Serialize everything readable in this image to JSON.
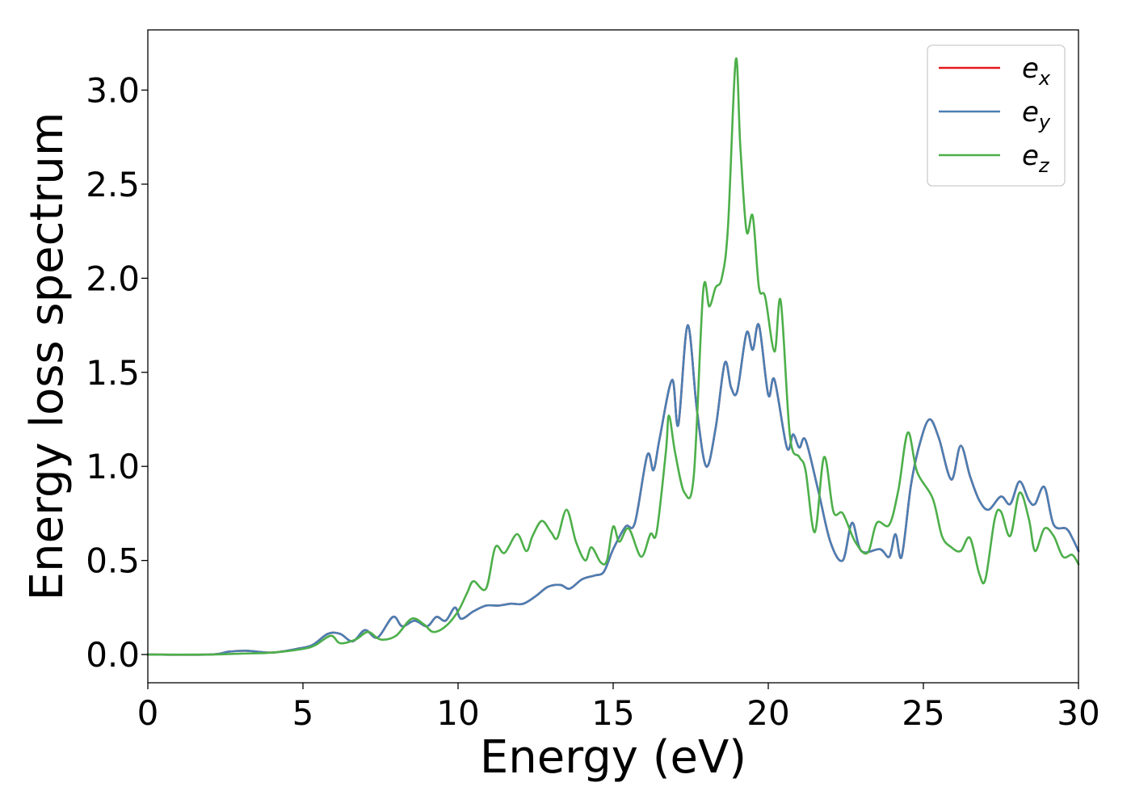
{
  "chart_data": {
    "type": "line",
    "xlabel": "Energy (eV)",
    "ylabel": "Energy loss spectrum",
    "xlim": [
      0,
      30
    ],
    "ylim": [
      -0.15,
      3.32
    ],
    "xticks": [
      0,
      5,
      10,
      15,
      20,
      25,
      30
    ],
    "xtick_labels": [
      "0",
      "5",
      "10",
      "15",
      "20",
      "25",
      "30"
    ],
    "yticks": [
      0.0,
      0.5,
      1.0,
      1.5,
      2.0,
      2.5,
      3.0
    ],
    "ytick_labels": [
      "0.0",
      "0.5",
      "1.0",
      "1.5",
      "2.0",
      "2.5",
      "3.0"
    ],
    "grid": false,
    "legend_position": "top-right",
    "series": [
      {
        "name": "e_x",
        "legend_base": "e",
        "legend_sub": "x",
        "color": "#e41a1c",
        "points": [
          [
            0,
            0.0
          ],
          [
            2,
            0.0
          ],
          [
            2.6,
            0.015
          ],
          [
            3.2,
            0.02
          ],
          [
            4,
            0.01
          ],
          [
            4.8,
            0.03
          ],
          [
            5.3,
            0.05
          ],
          [
            5.8,
            0.11
          ],
          [
            6.2,
            0.11
          ],
          [
            6.6,
            0.07
          ],
          [
            7.0,
            0.13
          ],
          [
            7.4,
            0.09
          ],
          [
            7.9,
            0.2
          ],
          [
            8.2,
            0.15
          ],
          [
            8.6,
            0.18
          ],
          [
            9.0,
            0.15
          ],
          [
            9.3,
            0.2
          ],
          [
            9.6,
            0.18
          ],
          [
            9.9,
            0.25
          ],
          [
            10.1,
            0.19
          ],
          [
            10.5,
            0.23
          ],
          [
            10.9,
            0.26
          ],
          [
            11.3,
            0.26
          ],
          [
            11.7,
            0.27
          ],
          [
            12.1,
            0.27
          ],
          [
            12.5,
            0.31
          ],
          [
            12.9,
            0.36
          ],
          [
            13.3,
            0.37
          ],
          [
            13.6,
            0.35
          ],
          [
            14.0,
            0.4
          ],
          [
            14.4,
            0.42
          ],
          [
            14.7,
            0.44
          ],
          [
            15.0,
            0.56
          ],
          [
            15.4,
            0.68
          ],
          [
            15.7,
            0.7
          ],
          [
            16.1,
            1.06
          ],
          [
            16.3,
            0.98
          ],
          [
            16.5,
            1.15
          ],
          [
            16.9,
            1.46
          ],
          [
            17.1,
            1.22
          ],
          [
            17.4,
            1.75
          ],
          [
            17.7,
            1.3
          ],
          [
            18.0,
            1.0
          ],
          [
            18.3,
            1.2
          ],
          [
            18.6,
            1.55
          ],
          [
            18.8,
            1.42
          ],
          [
            19.0,
            1.4
          ],
          [
            19.3,
            1.71
          ],
          [
            19.5,
            1.62
          ],
          [
            19.7,
            1.75
          ],
          [
            20.0,
            1.38
          ],
          [
            20.2,
            1.46
          ],
          [
            20.6,
            1.1
          ],
          [
            20.8,
            1.17
          ],
          [
            21.0,
            1.1
          ],
          [
            21.2,
            1.14
          ],
          [
            21.6,
            0.88
          ],
          [
            22.0,
            0.6
          ],
          [
            22.4,
            0.5
          ],
          [
            22.7,
            0.7
          ],
          [
            23.0,
            0.55
          ],
          [
            23.6,
            0.56
          ],
          [
            23.9,
            0.52
          ],
          [
            24.1,
            0.64
          ],
          [
            24.3,
            0.52
          ],
          [
            24.6,
            0.9
          ],
          [
            24.9,
            1.13
          ],
          [
            25.2,
            1.25
          ],
          [
            25.5,
            1.15
          ],
          [
            25.9,
            0.93
          ],
          [
            26.2,
            1.11
          ],
          [
            26.5,
            0.95
          ],
          [
            26.8,
            0.82
          ],
          [
            27.1,
            0.77
          ],
          [
            27.5,
            0.84
          ],
          [
            27.8,
            0.8
          ],
          [
            28.1,
            0.92
          ],
          [
            28.4,
            0.82
          ],
          [
            28.6,
            0.8
          ],
          [
            28.9,
            0.89
          ],
          [
            29.2,
            0.69
          ],
          [
            29.6,
            0.67
          ],
          [
            29.8,
            0.62
          ],
          [
            30,
            0.55
          ]
        ]
      },
      {
        "name": "e_y",
        "legend_base": "e",
        "legend_sub": "y",
        "color": "#4a7fb4",
        "points": [
          [
            0,
            0.0
          ],
          [
            2,
            0.0
          ],
          [
            2.6,
            0.015
          ],
          [
            3.2,
            0.02
          ],
          [
            4,
            0.01
          ],
          [
            4.8,
            0.03
          ],
          [
            5.3,
            0.05
          ],
          [
            5.8,
            0.11
          ],
          [
            6.2,
            0.11
          ],
          [
            6.6,
            0.07
          ],
          [
            7.0,
            0.13
          ],
          [
            7.4,
            0.09
          ],
          [
            7.9,
            0.2
          ],
          [
            8.2,
            0.15
          ],
          [
            8.6,
            0.18
          ],
          [
            9.0,
            0.15
          ],
          [
            9.3,
            0.2
          ],
          [
            9.6,
            0.18
          ],
          [
            9.9,
            0.25
          ],
          [
            10.1,
            0.19
          ],
          [
            10.5,
            0.23
          ],
          [
            10.9,
            0.26
          ],
          [
            11.3,
            0.26
          ],
          [
            11.7,
            0.27
          ],
          [
            12.1,
            0.27
          ],
          [
            12.5,
            0.31
          ],
          [
            12.9,
            0.36
          ],
          [
            13.3,
            0.37
          ],
          [
            13.6,
            0.35
          ],
          [
            14.0,
            0.4
          ],
          [
            14.4,
            0.42
          ],
          [
            14.7,
            0.44
          ],
          [
            15.0,
            0.56
          ],
          [
            15.4,
            0.68
          ],
          [
            15.7,
            0.7
          ],
          [
            16.1,
            1.06
          ],
          [
            16.3,
            0.98
          ],
          [
            16.5,
            1.15
          ],
          [
            16.9,
            1.46
          ],
          [
            17.1,
            1.22
          ],
          [
            17.4,
            1.75
          ],
          [
            17.7,
            1.3
          ],
          [
            18.0,
            1.0
          ],
          [
            18.3,
            1.2
          ],
          [
            18.6,
            1.55
          ],
          [
            18.8,
            1.42
          ],
          [
            19.0,
            1.4
          ],
          [
            19.3,
            1.71
          ],
          [
            19.5,
            1.62
          ],
          [
            19.7,
            1.75
          ],
          [
            20.0,
            1.38
          ],
          [
            20.2,
            1.46
          ],
          [
            20.6,
            1.1
          ],
          [
            20.8,
            1.17
          ],
          [
            21.0,
            1.1
          ],
          [
            21.2,
            1.14
          ],
          [
            21.6,
            0.88
          ],
          [
            22.0,
            0.6
          ],
          [
            22.4,
            0.5
          ],
          [
            22.7,
            0.7
          ],
          [
            23.0,
            0.55
          ],
          [
            23.6,
            0.56
          ],
          [
            23.9,
            0.52
          ],
          [
            24.1,
            0.64
          ],
          [
            24.3,
            0.52
          ],
          [
            24.6,
            0.9
          ],
          [
            24.9,
            1.13
          ],
          [
            25.2,
            1.25
          ],
          [
            25.5,
            1.15
          ],
          [
            25.9,
            0.93
          ],
          [
            26.2,
            1.11
          ],
          [
            26.5,
            0.95
          ],
          [
            26.8,
            0.82
          ],
          [
            27.1,
            0.77
          ],
          [
            27.5,
            0.84
          ],
          [
            27.8,
            0.8
          ],
          [
            28.1,
            0.92
          ],
          [
            28.4,
            0.82
          ],
          [
            28.6,
            0.8
          ],
          [
            28.9,
            0.89
          ],
          [
            29.2,
            0.69
          ],
          [
            29.6,
            0.67
          ],
          [
            29.8,
            0.62
          ],
          [
            30,
            0.55
          ]
        ]
      },
      {
        "name": "e_z",
        "legend_base": "e",
        "legend_sub": "z",
        "color": "#4daf4a",
        "points": [
          [
            0,
            0.0
          ],
          [
            2,
            0.0
          ],
          [
            3,
            0.005
          ],
          [
            4,
            0.01
          ],
          [
            5,
            0.03
          ],
          [
            5.4,
            0.05
          ],
          [
            5.9,
            0.1
          ],
          [
            6.2,
            0.06
          ],
          [
            6.7,
            0.08
          ],
          [
            7.1,
            0.12
          ],
          [
            7.5,
            0.08
          ],
          [
            8.0,
            0.1
          ],
          [
            8.5,
            0.19
          ],
          [
            8.9,
            0.16
          ],
          [
            9.2,
            0.12
          ],
          [
            9.6,
            0.15
          ],
          [
            10.0,
            0.23
          ],
          [
            10.3,
            0.33
          ],
          [
            10.5,
            0.39
          ],
          [
            10.9,
            0.35
          ],
          [
            11.2,
            0.57
          ],
          [
            11.5,
            0.54
          ],
          [
            11.9,
            0.64
          ],
          [
            12.2,
            0.55
          ],
          [
            12.4,
            0.63
          ],
          [
            12.7,
            0.71
          ],
          [
            13.0,
            0.65
          ],
          [
            13.2,
            0.62
          ],
          [
            13.5,
            0.77
          ],
          [
            13.8,
            0.6
          ],
          [
            14.1,
            0.5
          ],
          [
            14.3,
            0.57
          ],
          [
            14.6,
            0.49
          ],
          [
            14.8,
            0.5
          ],
          [
            15.0,
            0.68
          ],
          [
            15.2,
            0.6
          ],
          [
            15.5,
            0.67
          ],
          [
            15.9,
            0.52
          ],
          [
            16.2,
            0.64
          ],
          [
            16.4,
            0.65
          ],
          [
            16.7,
            1.08
          ],
          [
            16.8,
            1.27
          ],
          [
            17.0,
            1.07
          ],
          [
            17.3,
            0.86
          ],
          [
            17.6,
            0.95
          ],
          [
            17.9,
            1.93
          ],
          [
            18.1,
            1.85
          ],
          [
            18.3,
            1.95
          ],
          [
            18.5,
            2.0
          ],
          [
            18.7,
            2.27
          ],
          [
            18.95,
            3.16
          ],
          [
            19.1,
            2.7
          ],
          [
            19.3,
            2.25
          ],
          [
            19.5,
            2.33
          ],
          [
            19.7,
            1.95
          ],
          [
            19.9,
            1.9
          ],
          [
            20.2,
            1.61
          ],
          [
            20.4,
            1.88
          ],
          [
            20.7,
            1.16
          ],
          [
            21.0,
            1.05
          ],
          [
            21.2,
            0.98
          ],
          [
            21.5,
            0.65
          ],
          [
            21.8,
            1.05
          ],
          [
            22.1,
            0.76
          ],
          [
            22.4,
            0.75
          ],
          [
            22.8,
            0.6
          ],
          [
            23.2,
            0.54
          ],
          [
            23.5,
            0.7
          ],
          [
            23.9,
            0.69
          ],
          [
            24.2,
            0.88
          ],
          [
            24.5,
            1.18
          ],
          [
            24.8,
            0.97
          ],
          [
            25.3,
            0.83
          ],
          [
            25.6,
            0.63
          ],
          [
            25.9,
            0.57
          ],
          [
            26.2,
            0.55
          ],
          [
            26.5,
            0.62
          ],
          [
            26.8,
            0.43
          ],
          [
            27.0,
            0.4
          ],
          [
            27.3,
            0.72
          ],
          [
            27.5,
            0.76
          ],
          [
            27.8,
            0.63
          ],
          [
            28.1,
            0.86
          ],
          [
            28.4,
            0.72
          ],
          [
            28.6,
            0.55
          ],
          [
            28.9,
            0.67
          ],
          [
            29.2,
            0.63
          ],
          [
            29.5,
            0.52
          ],
          [
            29.8,
            0.53
          ],
          [
            30,
            0.48
          ]
        ]
      }
    ]
  }
}
